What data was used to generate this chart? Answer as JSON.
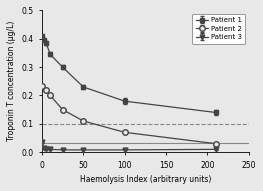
{
  "patient1_x": [
    0,
    2,
    5,
    10,
    25,
    50,
    100,
    210
  ],
  "patient1_y": [
    0.41,
    0.395,
    0.385,
    0.345,
    0.3,
    0.23,
    0.18,
    0.14
  ],
  "patient1_yerr": [
    0.008,
    0.006,
    0.006,
    0.007,
    0.008,
    0.008,
    0.01,
    0.008
  ],
  "patient2_x": [
    0,
    5,
    10,
    25,
    50,
    100,
    210
  ],
  "patient2_y": [
    0.235,
    0.22,
    0.2,
    0.15,
    0.11,
    0.07,
    0.03
  ],
  "patient2_yerr": [
    0.004,
    0.004,
    0.004,
    0.004,
    0.004,
    0.004,
    0.004
  ],
  "patient3_x": [
    0,
    2,
    5,
    10,
    25,
    50,
    100,
    210
  ],
  "patient3_y": [
    0.035,
    0.015,
    0.012,
    0.01,
    0.008,
    0.008,
    0.008,
    0.01
  ],
  "patient3_yerr": [
    0.002,
    0.002,
    0.002,
    0.002,
    0.002,
    0.002,
    0.002,
    0.002
  ],
  "hline_dashed_y": 0.1,
  "hline_solid_y": 0.032,
  "xlim": [
    0,
    250
  ],
  "ylim": [
    0,
    0.5
  ],
  "xlabel": "Haemolysis Index (arbitrary units)",
  "ylabel": "Troponin T concentration (μg/L)",
  "xticks": [
    0,
    50,
    100,
    150,
    200,
    250
  ],
  "yticks": [
    0.0,
    0.1,
    0.2,
    0.3,
    0.4,
    0.5
  ],
  "legend_labels": [
    "Patient 1",
    "Patient 2",
    "Patient 3"
  ],
  "line_color": "#444444",
  "bg_color": "#e8e8e8"
}
